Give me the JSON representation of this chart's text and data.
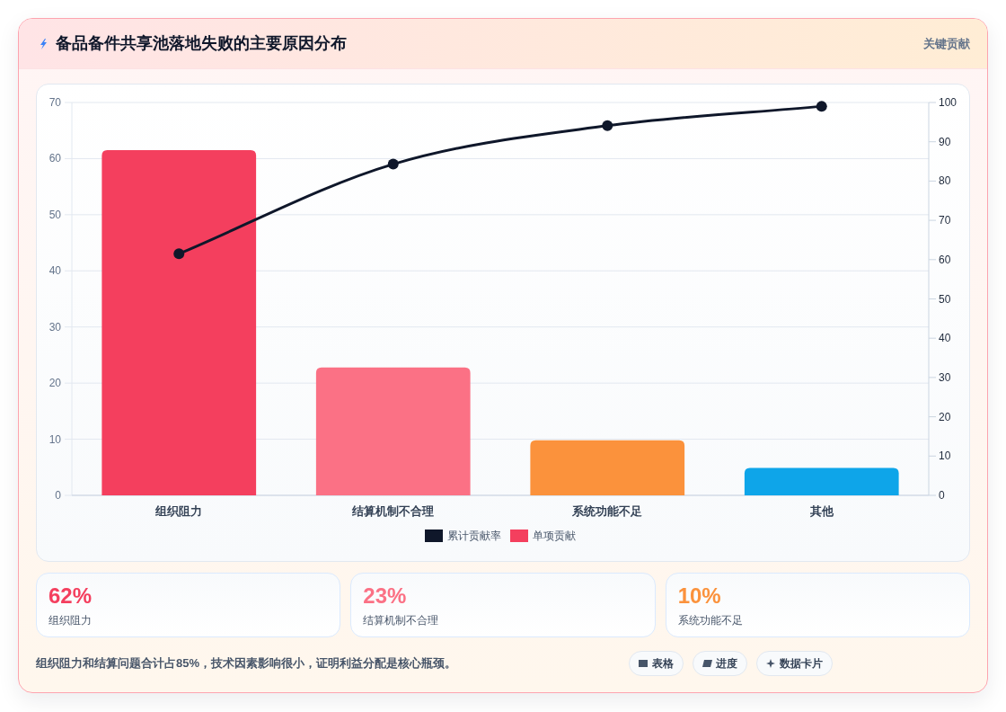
{
  "chart_data": [
    {
      "type": "bar",
      "title": "备品备件共享池落地失败的主要原因分布",
      "annotations": [
        "关键贡献"
      ],
      "categories": [
        "组织阻力",
        "结算机制不合理",
        "系统功能不足",
        "其他"
      ],
      "series": [
        {
          "name": "累计贡献率",
          "type": "line",
          "axis": "y2",
          "color": "#0f172a",
          "values": [
            61.5,
            84.3,
            94.1,
            99.0
          ]
        },
        {
          "name": "单项贡献",
          "type": "bar",
          "colors": [
            "#f43f5e",
            "#fb7185",
            "#fb923c",
            "#0ea5e9"
          ],
          "values": [
            61.5,
            22.8,
            9.8,
            4.9
          ]
        }
      ],
      "ylim": [
        0,
        70
      ],
      "yticks": [
        0,
        10,
        20,
        30,
        40,
        50,
        60,
        70
      ],
      "y2lim": [
        0,
        100
      ],
      "y2ticks": [
        0,
        10,
        20,
        30,
        40,
        50,
        60,
        70,
        80,
        90,
        100
      ],
      "grid": "y",
      "legend": "bottom",
      "marker": "circle",
      "line_style": "solid"
    },
    {
      "type": "other",
      "annotations": [
        "62%",
        "组织阻力",
        "23%",
        "结算机制不合理",
        "10%",
        "系统功能不足"
      ]
    },
    {
      "type": "other",
      "annotations": [
        "组织阻力和结算问题合计占85%，技术因素影响很小，证明利益分配是核心瓶颈。",
        "表格",
        "进度",
        "数据卡片"
      ]
    }
  ]
}
